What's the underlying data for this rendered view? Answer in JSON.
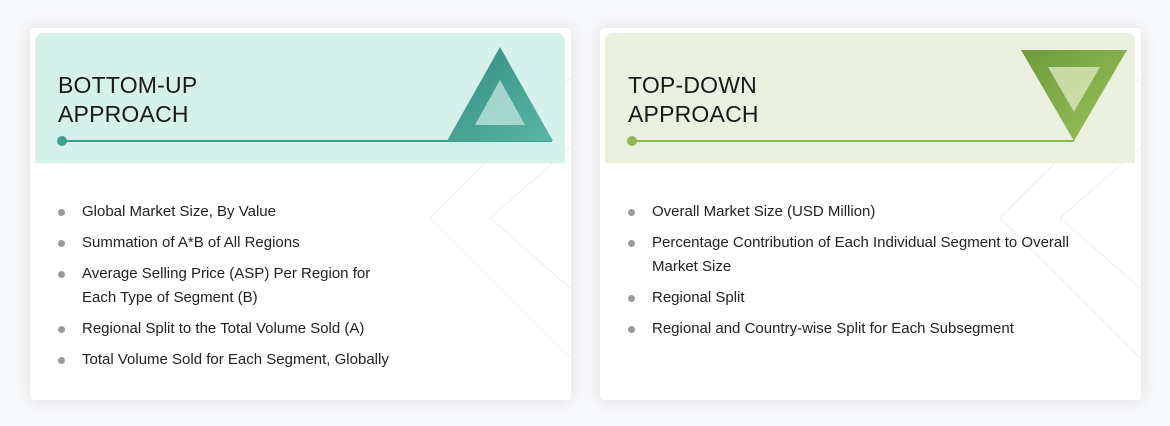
{
  "bottom_up": {
    "title_line1": "BOTTOM-UP",
    "title_line2": "APPROACH",
    "accent": "#3aa58f",
    "icon": "triangle-up-icon",
    "items": [
      "Global Market Size, By Value",
      "Summation of A*B of All Regions",
      "Average Selling Price (ASP) Per Region for Each Type of Segment (B)",
      "Regional Split to the Total Volume Sold (A)",
      "Total Volume Sold for Each Segment, Globally"
    ]
  },
  "top_down": {
    "title_line1": "TOP-DOWN",
    "title_line2": "APPROACH",
    "accent": "#8db852",
    "icon": "triangle-down-icon",
    "items": [
      "Overall Market Size (USD Million)",
      "Percentage Contribution of Each Individual Segment to Overall Market Size",
      "Regional Split",
      "Regional and Country-wise Split for Each Subsegment"
    ]
  }
}
